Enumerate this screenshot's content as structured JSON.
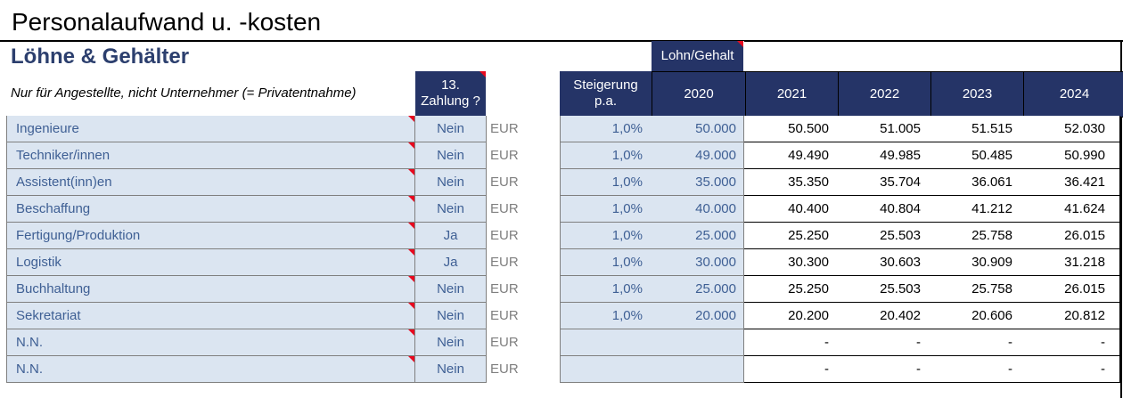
{
  "title": "Personalaufwand u. -kosten",
  "section": "Löhne & Gehälter",
  "subtitle": "Nur für Angestellte, nicht Unternehmer (= Privatentnahme)",
  "headers": {
    "lohn_gehalt": "Lohn/Gehalt",
    "zahlung13_line1": "13.",
    "zahlung13_line2": "Zahlung ?",
    "steigerung_line1": "Steigerung",
    "steigerung_line2": "p.a.",
    "years": [
      "2020",
      "2021",
      "2022",
      "2023",
      "2024"
    ]
  },
  "colors": {
    "header_bg": "#253467",
    "input_bg": "#dbe5f1",
    "input_text": "#3e5f94",
    "comment_marker": "#e8091f"
  },
  "rows": [
    {
      "label": "Ingenieure",
      "z13": "Nein",
      "currency": "EUR",
      "rate": "1,0%",
      "y2020": "50.000",
      "y2021": "50.500",
      "y2022": "51.005",
      "y2023": "51.515",
      "y2024": "52.030"
    },
    {
      "label": "Techniker/innen",
      "z13": "Nein",
      "currency": "EUR",
      "rate": "1,0%",
      "y2020": "49.000",
      "y2021": "49.490",
      "y2022": "49.985",
      "y2023": "50.485",
      "y2024": "50.990"
    },
    {
      "label": "Assistent(inn)en",
      "z13": "Nein",
      "currency": "EUR",
      "rate": "1,0%",
      "y2020": "35.000",
      "y2021": "35.350",
      "y2022": "35.704",
      "y2023": "36.061",
      "y2024": "36.421"
    },
    {
      "label": "Beschaffung",
      "z13": "Nein",
      "currency": "EUR",
      "rate": "1,0%",
      "y2020": "40.000",
      "y2021": "40.400",
      "y2022": "40.804",
      "y2023": "41.212",
      "y2024": "41.624"
    },
    {
      "label": "Fertigung/Produktion",
      "z13": "Ja",
      "currency": "EUR",
      "rate": "1,0%",
      "y2020": "25.000",
      "y2021": "25.250",
      "y2022": "25.503",
      "y2023": "25.758",
      "y2024": "26.015"
    },
    {
      "label": "Logistik",
      "z13": "Ja",
      "currency": "EUR",
      "rate": "1,0%",
      "y2020": "30.000",
      "y2021": "30.300",
      "y2022": "30.603",
      "y2023": "30.909",
      "y2024": "31.218"
    },
    {
      "label": "Buchhaltung",
      "z13": "Nein",
      "currency": "EUR",
      "rate": "1,0%",
      "y2020": "25.000",
      "y2021": "25.250",
      "y2022": "25.503",
      "y2023": "25.758",
      "y2024": "26.015"
    },
    {
      "label": "Sekretariat",
      "z13": "Nein",
      "currency": "EUR",
      "rate": "1,0%",
      "y2020": "20.000",
      "y2021": "20.200",
      "y2022": "20.402",
      "y2023": "20.606",
      "y2024": "20.812"
    },
    {
      "label": "N.N.",
      "z13": "Nein",
      "currency": "EUR",
      "rate": "",
      "y2020": "",
      "y2021": "-",
      "y2022": "-",
      "y2023": "-",
      "y2024": "-"
    },
    {
      "label": "N.N.",
      "z13": "Nein",
      "currency": "EUR",
      "rate": "",
      "y2020": "",
      "y2021": "-",
      "y2022": "-",
      "y2023": "-",
      "y2024": "-"
    }
  ]
}
